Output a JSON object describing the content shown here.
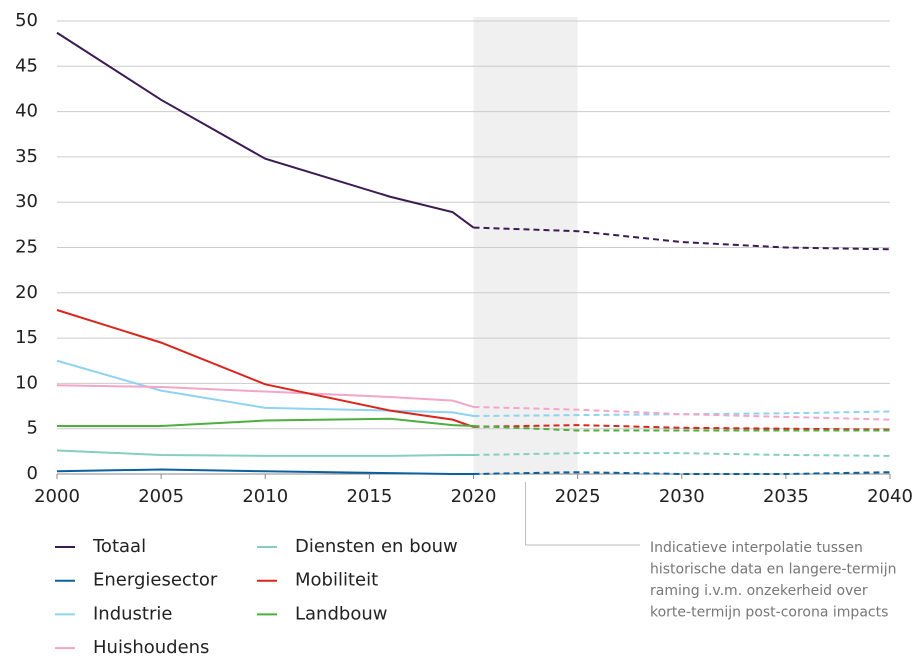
{
  "chart_data": {
    "type": "line",
    "x": [
      2000,
      2005,
      2010,
      2016,
      2019,
      2020,
      2025,
      2030,
      2035,
      2040
    ],
    "series": [
      {
        "name": "Totaal",
        "color": "#3c1a52",
        "values": [
          48.7,
          41.3,
          34.8,
          30.6,
          28.9,
          27.2,
          26.8,
          25.6,
          25.0,
          24.8
        ]
      },
      {
        "name": "Energiesector",
        "color": "#0b5f9c",
        "values": [
          0.3,
          0.5,
          0.3,
          0.1,
          0,
          0,
          0.2,
          0,
          0,
          0.2
        ]
      },
      {
        "name": "Industrie",
        "color": "#8fd3f0",
        "values": [
          12.5,
          9.2,
          7.3,
          7.0,
          6.8,
          6.4,
          6.5,
          6.6,
          6.7,
          6.9
        ]
      },
      {
        "name": "Huishoudens",
        "color": "#f2a6c8",
        "values": [
          9.8,
          9.6,
          9.1,
          8.5,
          8.1,
          7.4,
          7.1,
          6.6,
          6.3,
          6.0
        ]
      },
      {
        "name": "Diensten en bouw",
        "color": "#86cfc0",
        "values": [
          2.6,
          2.1,
          2.0,
          2.0,
          2.1,
          2.1,
          2.3,
          2.3,
          2.1,
          2.0
        ]
      },
      {
        "name": "Mobiliteit",
        "color": "#d9261c",
        "values": [
          18.1,
          14.5,
          9.9,
          7.0,
          6.0,
          5.2,
          5.4,
          5.1,
          5.0,
          4.9
        ]
      },
      {
        "name": "Landbouw",
        "color": "#4daf3d",
        "values": [
          5.3,
          5.3,
          5.9,
          6.1,
          5.4,
          5.3,
          4.8,
          4.8,
          4.8,
          4.8
        ]
      }
    ],
    "xlim": [
      2000,
      2040
    ],
    "xticks": [
      2000,
      2005,
      2010,
      2015,
      2020,
      2025,
      2030,
      2035,
      2040
    ],
    "ylim": [
      0,
      50
    ],
    "yticks": [
      0,
      5,
      10,
      15,
      20,
      25,
      30,
      35,
      40,
      45,
      50
    ],
    "grid": true,
    "dashed_from": 2020,
    "shaded_range": [
      2020,
      2025
    ],
    "annotation": [
      "Indicatieve interpolatie tussen",
      "historische data en langere-termijn",
      "raming i.v.m. onzekerheid over",
      "korte-termijn post-corona impacts"
    ]
  }
}
